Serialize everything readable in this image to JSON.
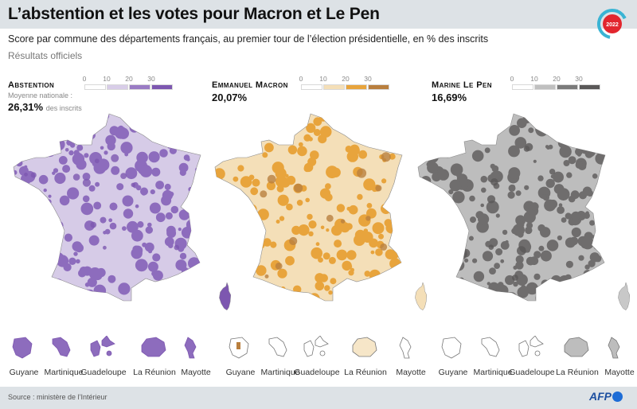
{
  "header": {
    "title": "L’abstention et les votes pour Macron et Le Pen",
    "subtitle": "Score par commune des départements français, au premier tour de l’élection présidentielle, en % des inscrits",
    "note": "Résultats officiels",
    "badge_year": "2022",
    "badge_colors": {
      "ring": "#3ab4d4",
      "center": "#e2262e"
    }
  },
  "footer": {
    "source": "Source : ministère de l’Intérieur",
    "logo": "AFP"
  },
  "chart_data": [
    {
      "type": "choropleth-map",
      "name": "Abstention",
      "title": "Abstention",
      "national_label": "Moyenne nationale :",
      "national_value": "26,31%",
      "national_suffix": "des inscrits",
      "legend": {
        "ticks": [
          "0",
          "10",
          "20",
          "30"
        ],
        "bins": [
          [
            0,
            10
          ],
          [
            10,
            20
          ],
          [
            20,
            30
          ],
          [
            30,
            100
          ]
        ],
        "colors": [
          "#ffffff",
          "#d8cde8",
          "#9a7cc4",
          "#7d57b0"
        ]
      },
      "dominant_color": "#8d6cbd",
      "light_color": "#d6cbe7",
      "corsica_color": "#7d57b0",
      "overseas": [
        "Guyane",
        "Martinique",
        "Guadeloupe",
        "La Réunion",
        "Mayotte"
      ]
    },
    {
      "type": "choropleth-map",
      "name": "Emmanuel Macron",
      "title": "Emmanuel Macron",
      "national_value": "20,07%",
      "legend": {
        "ticks": [
          "0",
          "10",
          "20",
          "30"
        ],
        "bins": [
          [
            0,
            10
          ],
          [
            10,
            20
          ],
          [
            20,
            30
          ],
          [
            30,
            100
          ]
        ],
        "colors": [
          "#ffffff",
          "#f4dfb8",
          "#e8a43c",
          "#b97f3e"
        ]
      },
      "dominant_color": "#e8a43c",
      "light_color": "#f4dfb8",
      "corsica_color": "#f4dfb8",
      "overseas": [
        "Guyane",
        "Martinique",
        "Guadeloupe",
        "La Réunion",
        "Mayotte"
      ]
    },
    {
      "type": "choropleth-map",
      "name": "Marine Le Pen",
      "title": "Marine Le Pen",
      "national_value": "16,69%",
      "legend": {
        "ticks": [
          "0",
          "10",
          "20",
          "30"
        ],
        "bins": [
          [
            0,
            10
          ],
          [
            10,
            20
          ],
          [
            20,
            30
          ],
          [
            30,
            100
          ]
        ],
        "colors": [
          "#ffffff",
          "#bfbfbf",
          "#7b7b7b",
          "#5a5858"
        ]
      },
      "dominant_color": "#6f6d6d",
      "light_color": "#bdbdbd",
      "corsica_color": "#c8c8c8",
      "overseas": [
        "Guyane",
        "Martinique",
        "Guadeloupe",
        "La Réunion",
        "Mayotte"
      ]
    }
  ]
}
